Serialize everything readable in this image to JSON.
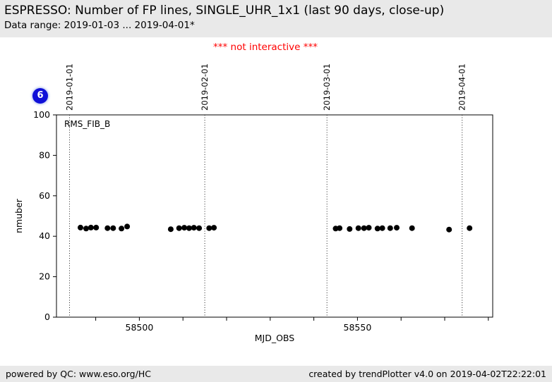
{
  "header": {
    "title": "ESPRESSO: Number of FP lines, SINGLE_UHR_1x1 (last 90 days, close-up)",
    "subtitle": "Data range: 2019-01-03 ... 2019-04-01*"
  },
  "notice": "*** not interactive ***",
  "badge": {
    "value": "6",
    "color": "#0f0fd8"
  },
  "chart_data": {
    "type": "scatter",
    "title": "",
    "xlabel": "MJD_OBS",
    "ylabel": "nmuber",
    "xlim": [
      58481,
      58581
    ],
    "ylim": [
      0,
      100
    ],
    "y_ticks": [
      0,
      20,
      40,
      60,
      80,
      100
    ],
    "x_ticks_labeled": [
      58500,
      58550
    ],
    "x_minor_step": 10,
    "grid": false,
    "legend_position": "top-left-inside",
    "point_color": "#000000",
    "date_lines": [
      {
        "label": "2019-01-01",
        "mjd": 58484
      },
      {
        "label": "2019-02-01",
        "mjd": 58515
      },
      {
        "label": "2019-03-01",
        "mjd": 58543
      },
      {
        "label": "2019-04-01",
        "mjd": 58574
      }
    ],
    "series": [
      {
        "name": "RMS_FIB_B",
        "color": "#000000",
        "x": [
          58486.5,
          58487.8,
          58488.9,
          58490.1,
          58492.7,
          58494.0,
          58495.9,
          58497.2,
          58507.2,
          58509.1,
          58510.3,
          58511.4,
          58512.5,
          58513.7,
          58516.0,
          58517.1,
          58545.0,
          58545.9,
          58548.2,
          58550.2,
          58551.5,
          58552.6,
          58554.6,
          58555.7,
          58557.5,
          58559.0,
          58562.5,
          58571.0,
          58575.7
        ],
        "y": [
          44.3,
          43.8,
          44.3,
          44.3,
          44.0,
          44.0,
          43.8,
          44.8,
          43.5,
          44.0,
          44.2,
          44.0,
          44.2,
          44.0,
          44.0,
          44.2,
          43.8,
          44.0,
          43.6,
          44.0,
          44.0,
          44.2,
          43.8,
          44.0,
          44.0,
          44.2,
          44.0,
          43.3,
          44.0
        ]
      }
    ]
  },
  "footer": {
    "left": "powered by QC: www.eso.org/HC",
    "right": "created by trendPlotter v4.0 on 2019-04-02T22:22:01"
  }
}
